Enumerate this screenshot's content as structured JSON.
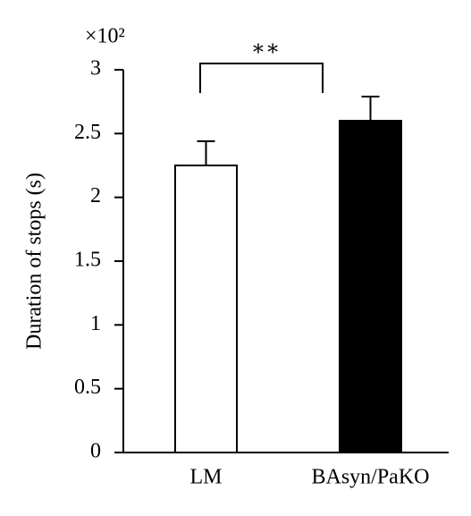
{
  "chart_data": {
    "type": "bar",
    "y_label": "Duration of stops (s)",
    "y_multiplier": "×10²",
    "categories": [
      "LM",
      "BAsyn/PaKO"
    ],
    "values": [
      2.25,
      2.6
    ],
    "errors": [
      0.19,
      0.19
    ],
    "colors": [
      "#ffffff",
      "#000000"
    ],
    "ylim": [
      0,
      3
    ],
    "yticks": [
      0,
      0.5,
      1,
      1.5,
      2,
      2.5,
      3
    ],
    "annotation": "∗∗"
  }
}
